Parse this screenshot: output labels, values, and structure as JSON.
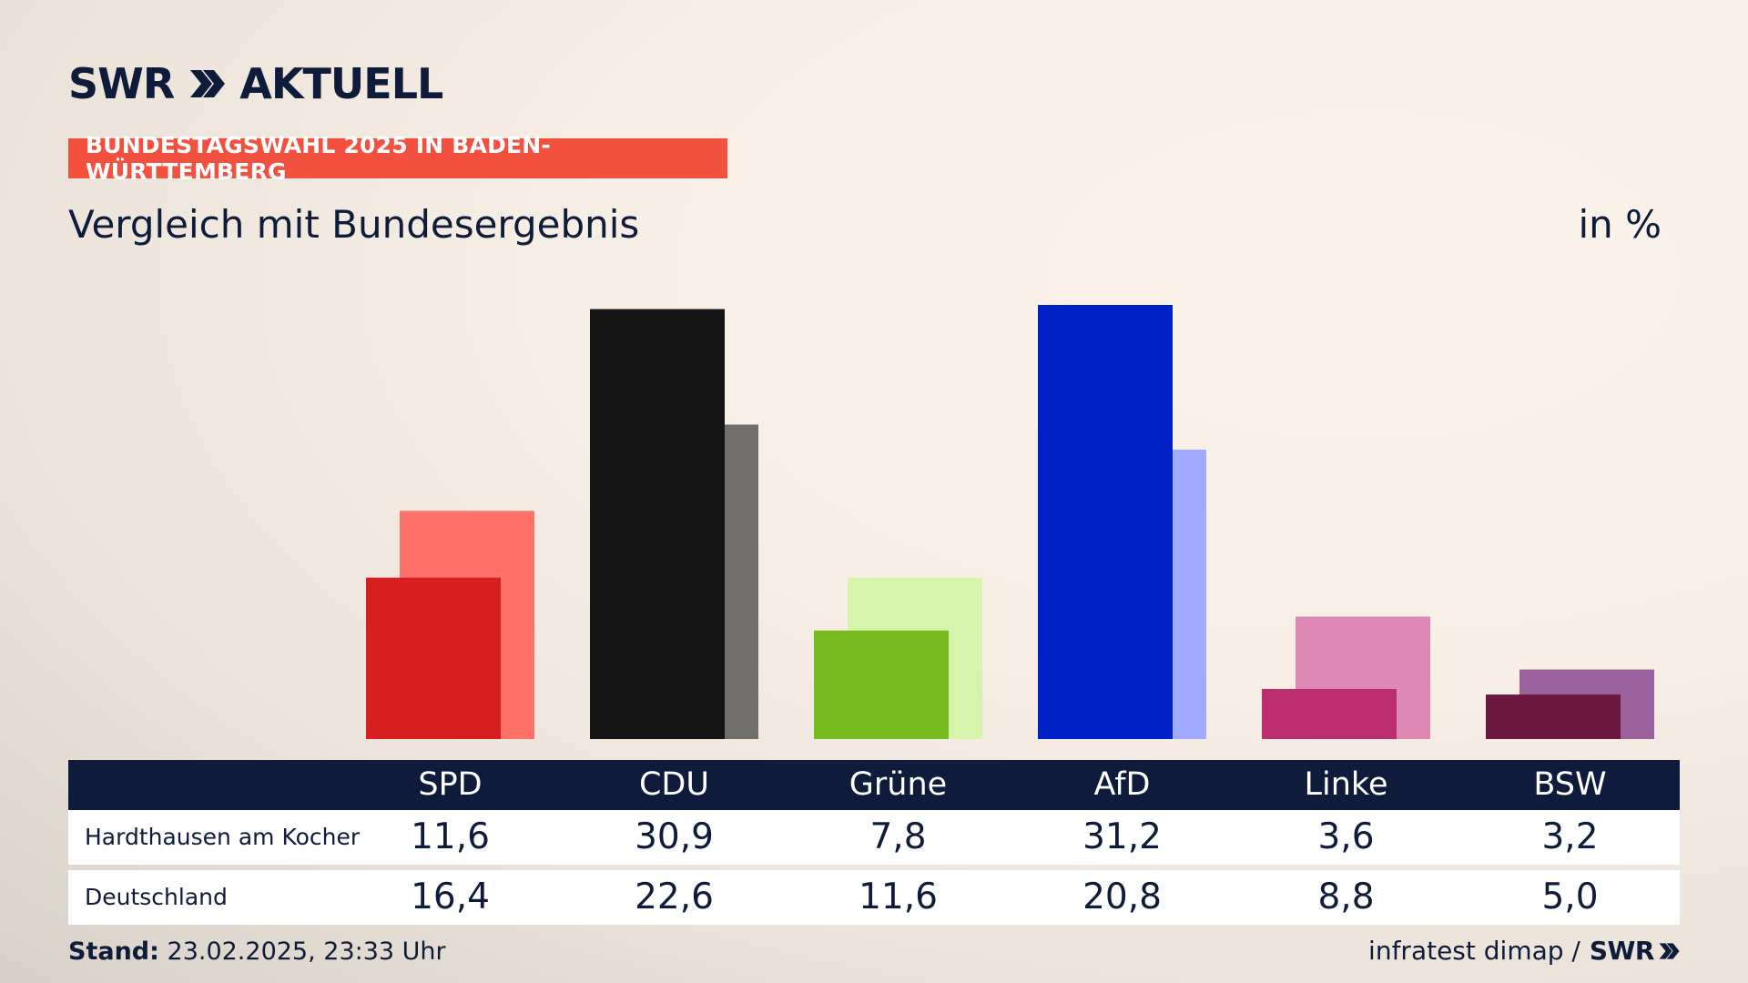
{
  "brand": {
    "logo_left": "SWR",
    "logo_right": "AKTUELL"
  },
  "header": {
    "label": "BUNDESTAGSWAHL 2025 IN BADEN-WÜRTTEMBERG"
  },
  "chart_header": {
    "title": "Vergleich mit Bundesergebnis",
    "unit": "in %"
  },
  "chart_data": {
    "type": "bar",
    "categories": [
      "SPD",
      "CDU",
      "Grüne",
      "AfD",
      "Linke",
      "BSW"
    ],
    "series": [
      {
        "name": "Hardthausen am Kocher",
        "values": [
          11.6,
          30.9,
          7.8,
          31.2,
          3.6,
          3.2
        ]
      },
      {
        "name": "Deutschland",
        "values": [
          16.4,
          22.6,
          11.6,
          20.8,
          8.8,
          5.0
        ]
      }
    ],
    "ylim": [
      0,
      31.2
    ],
    "colors": {
      "local": [
        "#d71f1f",
        "#141414",
        "#78bb1e",
        "#0020c8",
        "#bb2e70",
        "#6a1840"
      ],
      "national": [
        "#ff7169",
        "#706e6b",
        "#d6f5ac",
        "#a0aaff",
        "#df88b6",
        "#9b619c"
      ]
    }
  },
  "table": {
    "rows": [
      {
        "label": "Hardthausen am Kocher",
        "values": [
          "11,6",
          "30,9",
          "7,8",
          "31,2",
          "3,6",
          "3,2"
        ]
      },
      {
        "label": "Deutschland",
        "values": [
          "16,4",
          "22,6",
          "11,6",
          "20,8",
          "8,8",
          "5,0"
        ]
      }
    ]
  },
  "footer": {
    "stand_label": "Stand:",
    "stand_value": "23.02.2025, 23:33 Uhr",
    "source": "infratest dimap /",
    "source_logo": "SWR"
  }
}
